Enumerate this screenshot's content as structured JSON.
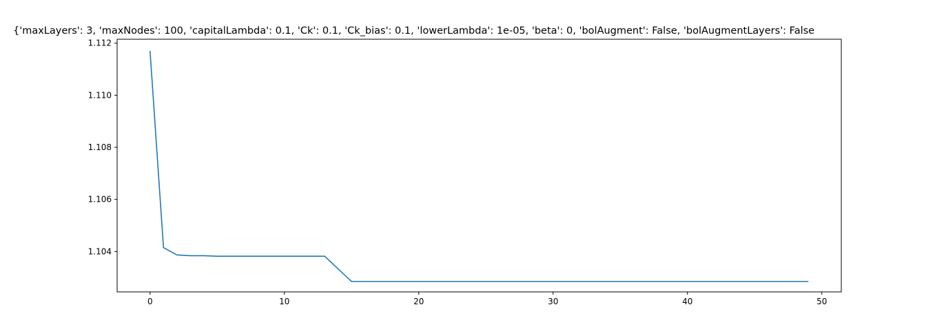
{
  "chart_data": {
    "type": "line",
    "title": "{'maxLayers': 3, 'maxNodes': 100, 'capitalLambda': 0.1, 'Ck': 0.1, 'Ck_bias': 0.1, 'lowerLambda': 1e-05, 'beta': 0, 'bolAugment': False, 'bolAugmentLayers': False",
    "xlabel": "",
    "ylabel": "",
    "xlim": [
      -2.45,
      51.45
    ],
    "ylim": [
      1.10245,
      1.11215
    ],
    "x_ticks": [
      0,
      10,
      20,
      30,
      40,
      50
    ],
    "x_tick_labels": [
      "0",
      "10",
      "20",
      "30",
      "40",
      "50"
    ],
    "y_ticks": [
      1.104,
      1.106,
      1.108,
      1.11,
      1.112
    ],
    "y_tick_labels": [
      "1.104",
      "1.106",
      "1.108",
      "1.110",
      "1.112"
    ],
    "grid": false,
    "line_color": "#1f77b4",
    "series": [
      {
        "x": [
          0,
          1,
          2,
          3,
          4,
          5,
          6,
          7,
          8,
          9,
          10,
          11,
          12,
          13,
          14,
          15,
          16,
          17,
          18,
          19,
          20,
          21,
          22,
          23,
          24,
          25,
          26,
          27,
          28,
          29,
          30,
          31,
          32,
          33,
          34,
          35,
          36,
          37,
          38,
          39,
          40,
          41,
          42,
          43,
          44,
          45,
          46,
          47,
          48,
          49
        ],
        "values": [
          1.1117,
          1.10415,
          1.10387,
          1.10384,
          1.10384,
          1.10382,
          1.10382,
          1.10382,
          1.10382,
          1.10382,
          1.10382,
          1.10382,
          1.10382,
          1.10382,
          1.10333,
          1.10285,
          1.10285,
          1.10285,
          1.10285,
          1.10285,
          1.10285,
          1.10285,
          1.10285,
          1.10285,
          1.10285,
          1.10285,
          1.10285,
          1.10285,
          1.10285,
          1.10285,
          1.10285,
          1.10285,
          1.10285,
          1.10285,
          1.10285,
          1.10285,
          1.10285,
          1.10285,
          1.10285,
          1.10285,
          1.10285,
          1.10285,
          1.10285,
          1.10285,
          1.10285,
          1.10285,
          1.10285,
          1.10285,
          1.10285,
          1.10285
        ]
      }
    ]
  }
}
